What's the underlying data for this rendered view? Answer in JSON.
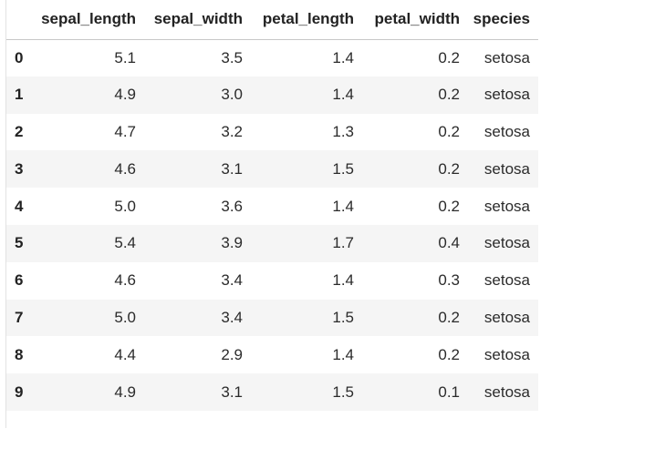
{
  "dataframe": {
    "columns": [
      "sepal_length",
      "sepal_width",
      "petal_length",
      "petal_width",
      "species"
    ],
    "index": [
      "0",
      "1",
      "2",
      "3",
      "4",
      "5",
      "6",
      "7",
      "8",
      "9"
    ],
    "rows": [
      [
        "5.1",
        "3.5",
        "1.4",
        "0.2",
        "setosa"
      ],
      [
        "4.9",
        "3.0",
        "1.4",
        "0.2",
        "setosa"
      ],
      [
        "4.7",
        "3.2",
        "1.3",
        "0.2",
        "setosa"
      ],
      [
        "4.6",
        "3.1",
        "1.5",
        "0.2",
        "setosa"
      ],
      [
        "5.0",
        "3.6",
        "1.4",
        "0.2",
        "setosa"
      ],
      [
        "5.4",
        "3.9",
        "1.7",
        "0.4",
        "setosa"
      ],
      [
        "4.6",
        "3.4",
        "1.4",
        "0.3",
        "setosa"
      ],
      [
        "5.0",
        "3.4",
        "1.5",
        "0.2",
        "setosa"
      ],
      [
        "4.4",
        "2.9",
        "1.4",
        "0.2",
        "setosa"
      ],
      [
        "4.9",
        "3.1",
        "1.5",
        "0.1",
        "setosa"
      ]
    ]
  },
  "colors": {
    "stripe": "#f5f5f5",
    "header_rule": "#c8c8c8",
    "text": "#222222"
  }
}
